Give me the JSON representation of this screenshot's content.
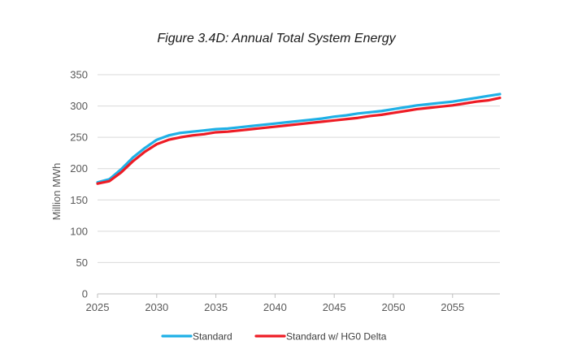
{
  "chart_data": {
    "type": "line",
    "title": "Figure 3.4D: Annual Total System Energy",
    "xlabel": "",
    "ylabel": "Million MWh",
    "xlim": [
      2025,
      2059
    ],
    "ylim": [
      0,
      350
    ],
    "yticks": [
      0,
      50,
      100,
      150,
      200,
      250,
      300,
      350
    ],
    "xticks": [
      2025,
      2030,
      2035,
      2040,
      2045,
      2050,
      2055
    ],
    "grid": true,
    "legend_position": "bottom",
    "x": [
      2025,
      2026,
      2027,
      2028,
      2029,
      2030,
      2031,
      2032,
      2033,
      2034,
      2035,
      2036,
      2037,
      2038,
      2039,
      2040,
      2041,
      2042,
      2043,
      2044,
      2045,
      2046,
      2047,
      2048,
      2049,
      2050,
      2051,
      2052,
      2053,
      2054,
      2055,
      2056,
      2057,
      2058,
      2059
    ],
    "series": [
      {
        "name": "Standard",
        "color": "#1fb0e6",
        "values": [
          178,
          183,
          199,
          218,
          233,
          246,
          253,
          257,
          259,
          261,
          263,
          264,
          266,
          268,
          270,
          272,
          274,
          276,
          278,
          280,
          283,
          285,
          288,
          290,
          292,
          295,
          298,
          301,
          303,
          305,
          307,
          310,
          313,
          316,
          319
        ]
      },
      {
        "name": "Standard w/ HG0 Delta",
        "color": "#ee1c25",
        "values": [
          176,
          180,
          194,
          212,
          227,
          239,
          246,
          250,
          253,
          255,
          258,
          259,
          261,
          263,
          265,
          267,
          269,
          271,
          273,
          275,
          277,
          279,
          281,
          284,
          286,
          289,
          292,
          295,
          297,
          299,
          301,
          304,
          307,
          309,
          313
        ]
      }
    ]
  }
}
